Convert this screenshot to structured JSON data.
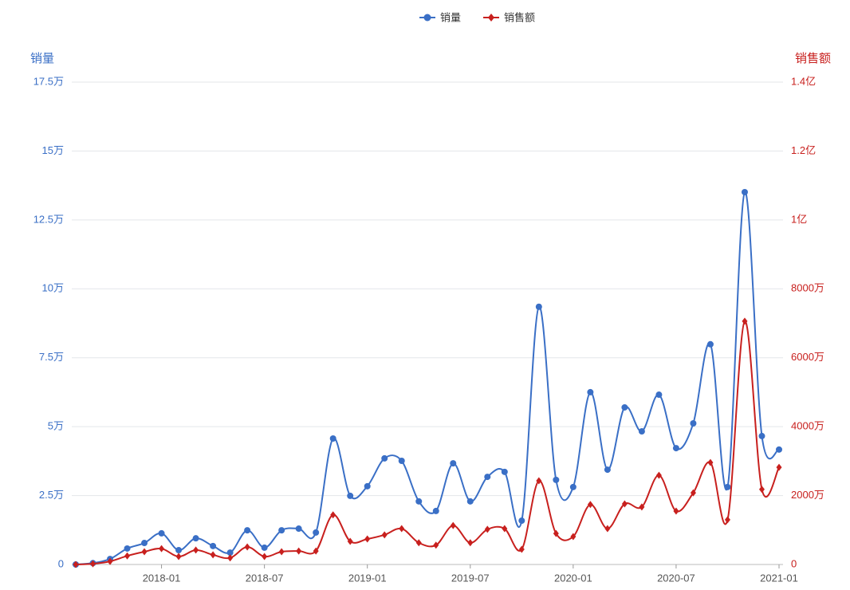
{
  "chart_data": {
    "type": "line",
    "categories": [
      null,
      null,
      null,
      null,
      null,
      "2018-01",
      null,
      null,
      null,
      null,
      null,
      "2018-07",
      null,
      null,
      null,
      null,
      null,
      "2019-01",
      null,
      null,
      null,
      null,
      null,
      "2019-07",
      null,
      null,
      null,
      null,
      null,
      "2020-01",
      null,
      null,
      null,
      null,
      null,
      "2020-07",
      null,
      null,
      null,
      null,
      null,
      "2021-01"
    ],
    "y_label": "销量",
    "y2_label": "销售额",
    "ylim": [
      0,
      17.5
    ],
    "yticks": [
      0,
      {
        "value": 2.5,
        "label": "2.5万"
      },
      {
        "value": 5,
        "label": "5万"
      },
      {
        "value": 7.5,
        "label": "7.5万"
      },
      {
        "value": 10,
        "label": "10万"
      },
      {
        "value": 12.5,
        "label": "12.5万"
      },
      {
        "value": 15,
        "label": "15万"
      },
      {
        "value": 17.5,
        "label": "17.5万"
      }
    ],
    "y2lim": [
      0,
      14000
    ],
    "y2ticks": [
      0,
      {
        "value": 2000,
        "label": "2000万"
      },
      {
        "value": 4000,
        "label": "4000万"
      },
      {
        "value": 6000,
        "label": "6000万"
      },
      {
        "value": 8000,
        "label": "8000万"
      },
      {
        "value": 10000,
        "label": "1亿"
      },
      {
        "value": 12000,
        "label": "1.2亿"
      },
      {
        "value": 14000,
        "label": "1.4亿"
      }
    ],
    "grid": true,
    "legend": "top",
    "series": [
      {
        "name": "销量",
        "color": "#3a6fc6",
        "marker": "circle",
        "axis": "y",
        "values": [
          0,
          0.05,
          0.2,
          0.58,
          0.78,
          1.13,
          0.52,
          0.95,
          0.67,
          0.43,
          1.24,
          0.61,
          1.24,
          1.3,
          1.16,
          4.57,
          2.49,
          2.84,
          3.85,
          3.76,
          2.29,
          1.94,
          3.67,
          2.29,
          3.18,
          3.36,
          1.59,
          9.35,
          3.07,
          2.81,
          6.25,
          3.44,
          5.7,
          4.83,
          6.16,
          4.22,
          5.12,
          7.99,
          2.81,
          13.51,
          4.66,
          4.17
        ]
      },
      {
        "name": "销售额",
        "color": "#c8201e",
        "marker": "diamond",
        "axis": "y2",
        "values": [
          0,
          20,
          90,
          250,
          370,
          460,
          230,
          420,
          280,
          190,
          510,
          230,
          370,
          390,
          390,
          1440,
          670,
          740,
          860,
          1040,
          630,
          560,
          1130,
          630,
          1020,
          1040,
          440,
          2430,
          900,
          810,
          1740,
          1040,
          1760,
          1670,
          2590,
          1550,
          2080,
          2960,
          1300,
          7060,
          2180,
          2820
        ]
      }
    ]
  }
}
